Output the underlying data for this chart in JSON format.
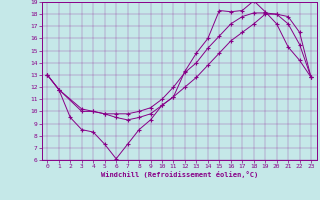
{
  "xlabel": "Windchill (Refroidissement éolien,°C)",
  "bg_color": "#c5e8e8",
  "line_color": "#880088",
  "xlim": [
    -0.5,
    23.5
  ],
  "ylim": [
    6,
    19
  ],
  "xticks": [
    0,
    1,
    2,
    3,
    4,
    5,
    6,
    7,
    8,
    9,
    10,
    11,
    12,
    13,
    14,
    15,
    16,
    17,
    18,
    19,
    20,
    21,
    22,
    23
  ],
  "yticks": [
    6,
    7,
    8,
    9,
    10,
    11,
    12,
    13,
    14,
    15,
    16,
    17,
    18,
    19
  ],
  "line1_x": [
    0,
    1,
    2,
    3,
    4,
    5,
    6,
    7,
    8,
    9,
    10,
    11,
    12,
    13,
    14,
    15,
    16,
    17,
    18,
    19,
    20,
    21,
    22,
    23
  ],
  "line1_y": [
    13,
    11.8,
    9.5,
    8.5,
    8.3,
    7.3,
    6.1,
    7.3,
    8.5,
    9.3,
    10.5,
    11.2,
    13.3,
    14.8,
    16.0,
    18.3,
    18.2,
    18.3,
    19.1,
    18.2,
    17.2,
    15.3,
    14.2,
    12.8
  ],
  "line2_x": [
    0,
    1,
    3,
    4,
    5,
    6,
    7,
    8,
    9,
    10,
    11,
    12,
    13,
    14,
    15,
    16,
    17,
    18,
    19,
    20,
    21,
    22,
    23
  ],
  "line2_y": [
    13,
    11.8,
    10.0,
    10.0,
    9.8,
    9.8,
    9.8,
    10.0,
    10.3,
    11.0,
    12.0,
    13.2,
    14.0,
    15.2,
    16.2,
    17.2,
    17.8,
    18.1,
    18.1,
    18.0,
    17.8,
    16.5,
    12.8
  ],
  "line3_x": [
    0,
    1,
    3,
    4,
    5,
    6,
    7,
    8,
    9,
    10,
    11,
    12,
    13,
    14,
    15,
    16,
    17,
    18,
    19,
    20,
    21,
    22,
    23
  ],
  "line3_y": [
    13,
    11.8,
    10.2,
    10.0,
    9.8,
    9.5,
    9.3,
    9.5,
    9.8,
    10.5,
    11.2,
    12.0,
    12.8,
    13.8,
    14.8,
    15.8,
    16.5,
    17.2,
    18.0,
    18.0,
    17.2,
    15.5,
    12.8
  ]
}
